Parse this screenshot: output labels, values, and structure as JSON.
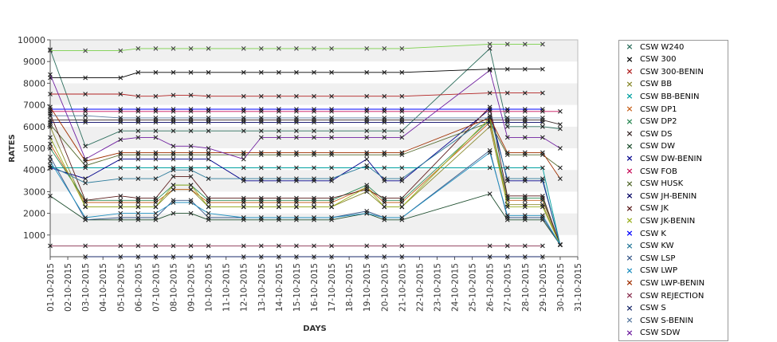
{
  "chart_data": {
    "type": "line",
    "title": "",
    "xlabel": "DAYS",
    "ylabel": "RATES",
    "ylim": [
      0,
      10000
    ],
    "yticks": [
      1000,
      2000,
      3000,
      4000,
      5000,
      6000,
      7000,
      8000,
      9000,
      10000
    ],
    "categories": [
      "01-10-2015",
      "02-10-2015",
      "03-10-2015",
      "04-10-2015",
      "05-10-2015",
      "06-10-2015",
      "07-10-2015",
      "08-10-2015",
      "09-10-2015",
      "10-10-2015",
      "11-10-2015",
      "12-10-2015",
      "13-10-2015",
      "14-10-2015",
      "15-10-2015",
      "16-10-2015",
      "17-10-2015",
      "18-10-2015",
      "19-10-2015",
      "20-10-2015",
      "21-10-2015",
      "22-10-2015",
      "23-10-2015",
      "24-10-2015",
      "25-10-2015",
      "26-10-2015",
      "27-10-2015",
      "28-10-2015",
      "29-10-2015",
      "30-10-2015",
      "31-10-2015"
    ],
    "x": [
      "01-10-2015",
      "03-10-2015",
      "05-10-2015",
      "06-10-2015",
      "07-10-2015",
      "08-10-2015",
      "09-10-2015",
      "10-10-2015",
      "12-10-2015",
      "13-10-2015",
      "14-10-2015",
      "15-10-2015",
      "16-10-2015",
      "17-10-2015",
      "19-10-2015",
      "20-10-2015",
      "21-10-2015",
      "26-10-2015",
      "27-10-2015",
      "28-10-2015",
      "29-10-2015",
      "30-10-2015"
    ],
    "grid": true,
    "legend_position": "right",
    "series": [
      {
        "name": "CSW  W240",
        "color": "#2e6f5e",
        "values": [
          9550,
          5100,
          5800,
          5800,
          5800,
          5800,
          5800,
          5800,
          5800,
          5800,
          5800,
          5800,
          5800,
          5800,
          5800,
          5800,
          5800,
          9600,
          6000,
          6000,
          6000,
          5900
        ]
      },
      {
        "name": "CSW 300",
        "color": "#000000",
        "values": [
          8250,
          8250,
          8250,
          8500,
          8500,
          8500,
          8500,
          8500,
          8500,
          8500,
          8500,
          8500,
          8500,
          8500,
          8500,
          8500,
          8500,
          8650,
          8650,
          8650,
          8650,
          null
        ]
      },
      {
        "name": "CSW 300-BENIN",
        "color": "#b22222",
        "values": [
          7500,
          7500,
          7500,
          7400,
          7400,
          7450,
          7450,
          7400,
          7400,
          7400,
          7400,
          7400,
          7400,
          7400,
          7400,
          7400,
          7400,
          7550,
          7550,
          7550,
          7550,
          null
        ]
      },
      {
        "name": "CSW BB",
        "color": "#8a8a2e",
        "values": [
          6000,
          2300,
          2300,
          2300,
          2300,
          3100,
          3100,
          2300,
          2300,
          2300,
          2300,
          2300,
          2300,
          2300,
          3000,
          2300,
          2300,
          6000,
          2400,
          2400,
          2400,
          550
        ]
      },
      {
        "name": "CSW BB-BENIN",
        "color": "#00a0a0",
        "values": [
          4100,
          4100,
          4100,
          4100,
          4100,
          4100,
          4100,
          4100,
          4100,
          4100,
          4100,
          4100,
          4100,
          4100,
          4100,
          4100,
          4100,
          4100,
          4100,
          4100,
          4100,
          550
        ]
      },
      {
        "name": "CSW DP1",
        "color": "#c86420",
        "values": [
          5200,
          2500,
          2500,
          2500,
          2500,
          3100,
          3100,
          2500,
          2500,
          2500,
          2500,
          2500,
          2500,
          2500,
          3200,
          2500,
          2500,
          6200,
          2600,
          2600,
          2600,
          550
        ]
      },
      {
        "name": "CSW DP2",
        "color": "#2e8b57",
        "values": [
          5000,
          2600,
          2600,
          2600,
          2600,
          3300,
          3300,
          2600,
          2600,
          2600,
          2600,
          2600,
          2600,
          2600,
          3300,
          2600,
          2600,
          6300,
          2700,
          2700,
          2700,
          550
        ]
      },
      {
        "name": "CSW DS",
        "color": "#3a2a2a",
        "values": [
          6300,
          6300,
          6300,
          6300,
          6300,
          6300,
          6300,
          6300,
          6300,
          6300,
          6300,
          6300,
          6300,
          6300,
          6300,
          6300,
          6300,
          6300,
          6300,
          6300,
          6300,
          6100
        ]
      },
      {
        "name": "CSW DW",
        "color": "#1f4f2f",
        "values": [
          2800,
          1700,
          1700,
          1700,
          1700,
          2000,
          2000,
          1700,
          1700,
          1700,
          1700,
          1700,
          1700,
          1700,
          2000,
          1700,
          1700,
          2900,
          1700,
          1700,
          1700,
          550
        ]
      },
      {
        "name": "CSW DW-BENIN",
        "color": "#00008b",
        "values": [
          4100,
          3600,
          4500,
          4500,
          4500,
          4500,
          4500,
          4500,
          3500,
          3500,
          3500,
          3500,
          3500,
          3500,
          4500,
          3500,
          3500,
          6800,
          3500,
          3500,
          3500,
          550
        ]
      },
      {
        "name": "CSW FOB",
        "color": "#c8105a",
        "values": [
          6700,
          6700,
          6700,
          6700,
          6700,
          6700,
          6700,
          6700,
          6700,
          6700,
          6700,
          6700,
          6700,
          6700,
          6700,
          6700,
          6700,
          6700,
          6700,
          6700,
          6700,
          6700
        ]
      },
      {
        "name": "CSW HUSK",
        "color": "#556b2f",
        "values": [
          6100,
          4200,
          4700,
          4700,
          4700,
          4700,
          4700,
          4700,
          4700,
          4700,
          4700,
          4700,
          4700,
          4700,
          4700,
          4700,
          4700,
          6200,
          4700,
          4700,
          4700,
          4100
        ]
      },
      {
        "name": "CSW JH-BENIN",
        "color": "#000060",
        "values": [
          6200,
          6200,
          6200,
          6200,
          6200,
          6200,
          6200,
          6200,
          6200,
          6200,
          6200,
          6200,
          6200,
          6200,
          6200,
          6200,
          6200,
          6200,
          6200,
          6200,
          6200,
          null
        ]
      },
      {
        "name": "CSW JK",
        "color": "#5a1a1a",
        "values": [
          6600,
          2600,
          2800,
          2700,
          2700,
          3700,
          3700,
          2700,
          2700,
          2700,
          2700,
          2700,
          2700,
          2700,
          3100,
          2700,
          2700,
          6900,
          2800,
          2800,
          2800,
          550
        ]
      },
      {
        "name": "CSW JK-BENIN",
        "color": "#9ab020",
        "values": [
          5500,
          2300,
          2300,
          2300,
          2300,
          3300,
          3300,
          2300,
          2300,
          2300,
          2300,
          2300,
          2300,
          2300,
          3200,
          2300,
          2300,
          6400,
          2300,
          2300,
          2300,
          550
        ]
      },
      {
        "name": "CSW K",
        "color": "#0000ff",
        "values": [
          6800,
          6800,
          6800,
          6800,
          6800,
          6800,
          6800,
          6800,
          6800,
          6800,
          6800,
          6800,
          6800,
          6800,
          6800,
          6800,
          6800,
          6800,
          6800,
          6800,
          6800,
          null
        ]
      },
      {
        "name": "CSW KW",
        "color": "#2a7a9a",
        "values": [
          4200,
          3400,
          3600,
          3600,
          3600,
          4000,
          4000,
          3600,
          3600,
          3600,
          3600,
          3600,
          3600,
          3600,
          4200,
          3600,
          3600,
          6500,
          3600,
          3600,
          3600,
          550
        ]
      },
      {
        "name": "CSW LSP",
        "color": "#3a5a8a",
        "values": [
          4600,
          1700,
          1800,
          1800,
          1800,
          2600,
          2600,
          1800,
          1800,
          1800,
          1800,
          1800,
          1800,
          1800,
          2100,
          1800,
          1800,
          4900,
          1800,
          1800,
          1800,
          550
        ]
      },
      {
        "name": "CSW LWP",
        "color": "#2090c0",
        "values": [
          4400,
          1800,
          2000,
          2000,
          2000,
          2500,
          2500,
          2000,
          1800,
          1800,
          1800,
          1800,
          1800,
          1800,
          2000,
          1800,
          1800,
          4800,
          1900,
          1900,
          1900,
          550
        ]
      },
      {
        "name": "CSW LWP-BENIN",
        "color": "#a03000",
        "values": [
          6900,
          4400,
          4800,
          4800,
          4800,
          4800,
          4800,
          4800,
          4800,
          4800,
          4800,
          4800,
          4800,
          4800,
          4800,
          4800,
          4800,
          6400,
          4800,
          4800,
          4800,
          3600
        ]
      },
      {
        "name": "CSW REJECTION",
        "color": "#8a3050",
        "values": [
          500,
          500,
          500,
          500,
          500,
          500,
          500,
          500,
          500,
          500,
          500,
          500,
          500,
          500,
          500,
          500,
          500,
          500,
          500,
          500,
          500,
          null
        ]
      },
      {
        "name": "CSW S",
        "color": "#1a2a6a",
        "values": [
          null,
          0,
          0,
          0,
          0,
          0,
          0,
          0,
          0,
          0,
          0,
          0,
          0,
          0,
          0,
          0,
          0,
          0,
          0,
          0,
          0,
          null
        ]
      },
      {
        "name": "CSW S-BENIN",
        "color": "#5a7aa0",
        "values": [
          6500,
          6500,
          6400,
          6400,
          6400,
          6400,
          6400,
          6400,
          6400,
          6400,
          6400,
          6400,
          6400,
          6400,
          6400,
          6400,
          6400,
          6400,
          6400,
          6400,
          6400,
          null
        ]
      },
      {
        "name": "CSW SDW",
        "color": "#7020a0",
        "values": [
          8400,
          4500,
          5400,
          5500,
          5500,
          5100,
          5100,
          5000,
          4500,
          5500,
          5500,
          5500,
          5500,
          5500,
          5500,
          5500,
          5500,
          8600,
          5500,
          5500,
          5500,
          5000
        ]
      },
      {
        "name": "",
        "color": "#7ad04a",
        "values": [
          9500,
          9500,
          9500,
          9600,
          9600,
          9600,
          9600,
          9600,
          9600,
          9600,
          9600,
          9600,
          9600,
          9600,
          9600,
          9600,
          9600,
          9800,
          9800,
          9800,
          9800,
          null
        ]
      }
    ]
  }
}
